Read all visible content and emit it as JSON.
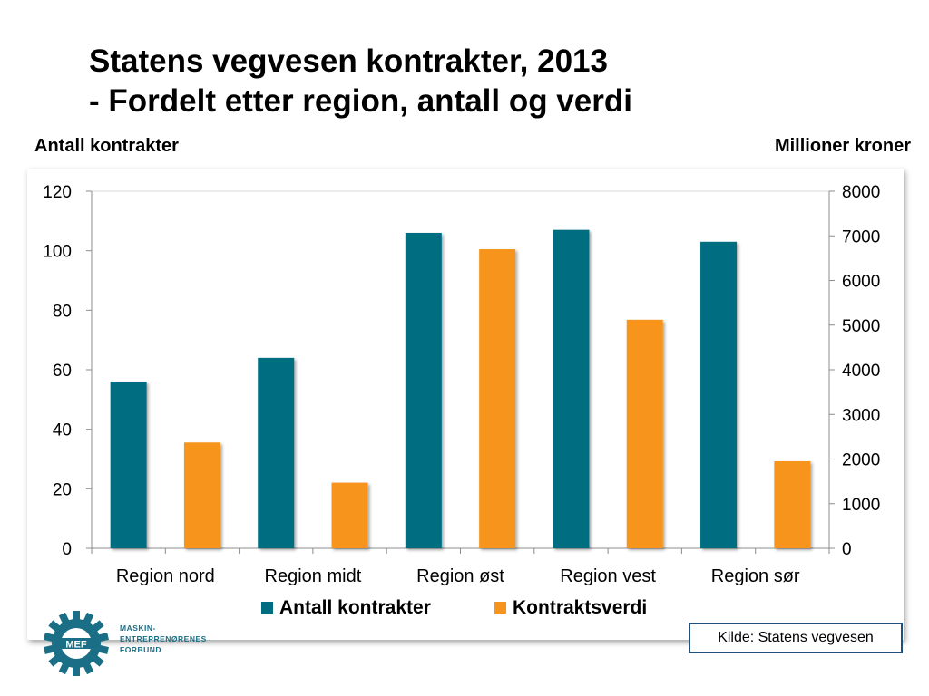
{
  "title_line1": "Statens vegvesen kontrakter, 2013",
  "title_line2": "- Fordelt etter region, antall og verdi",
  "left_axis_title": "Antall kontrakter",
  "right_axis_title": "Millioner kroner",
  "source": "Kilde: Statens vegvesen",
  "logo": {
    "icon": "gear-logo-icon",
    "mark": "MEF",
    "lines": [
      "MASKIN-",
      "ENTREPRENØRENES",
      "FORBUND"
    ],
    "color": "#1a6f86"
  },
  "chart_data": {
    "type": "bar",
    "categories": [
      "Region nord",
      "Region midt",
      "Region øst",
      "Region vest",
      "Region sør"
    ],
    "series": [
      {
        "name": "Antall kontrakter",
        "axis": "left",
        "color": "#006d80",
        "values": [
          56,
          64,
          106,
          107,
          103
        ]
      },
      {
        "name": "Kontraktsverdi",
        "axis": "right",
        "color": "#f7941d",
        "values": [
          2370,
          1470,
          6700,
          5120,
          1950
        ]
      }
    ],
    "y_left": {
      "label": "Antall kontrakter",
      "lim": [
        0,
        120
      ],
      "ticks": [
        "0",
        "20",
        "40",
        "60",
        "80",
        "100",
        "120"
      ]
    },
    "y_right": {
      "label": "Millioner kroner",
      "lim": [
        0,
        8000
      ],
      "ticks": [
        "0",
        "1000",
        "2000",
        "3000",
        "4000",
        "5000",
        "6000",
        "7000",
        "8000"
      ]
    },
    "legend_position": "bottom",
    "grid": true
  }
}
